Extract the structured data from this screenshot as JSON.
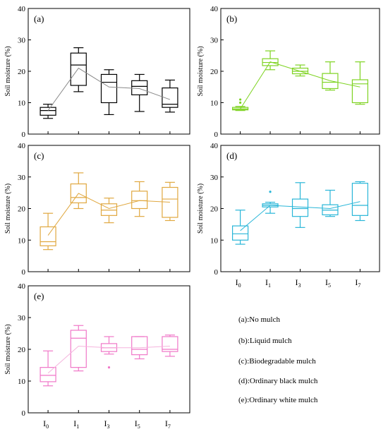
{
  "chart_data": [
    {
      "type": "box",
      "panel_label": "(a)",
      "ylabel": "Soil moisture (%)",
      "ylim": [
        0,
        40
      ],
      "yticks": [
        0,
        10,
        20,
        30,
        40
      ],
      "categories": [
        "I0",
        "I1",
        "I3",
        "I5",
        "I7"
      ],
      "color": "#000000",
      "mean_line_color": "#8a8a8a",
      "boxes": [
        {
          "min": 5.0,
          "q1": 6.0,
          "median": 7.5,
          "q3": 8.5,
          "max": 9.5,
          "mean": 7.5,
          "outliers": []
        },
        {
          "min": 13.5,
          "q1": 15.5,
          "median": 22.0,
          "q3": 25.8,
          "max": 27.5,
          "mean": 21.0,
          "outliers": []
        },
        {
          "min": 6.2,
          "q1": 10.0,
          "median": 16.5,
          "q3": 19.0,
          "max": 20.5,
          "mean": 15.0,
          "outliers": []
        },
        {
          "min": 7.2,
          "q1": 12.5,
          "median": 15.2,
          "q3": 17.0,
          "max": 19.0,
          "mean": 14.5,
          "outliers": []
        },
        {
          "min": 7.0,
          "q1": 8.5,
          "median": 9.5,
          "q3": 14.7,
          "max": 17.2,
          "mean": 11.0,
          "outliers": []
        }
      ]
    },
    {
      "type": "box",
      "panel_label": "(b)",
      "ylabel": "Soil moisture (%)",
      "ylim": [
        0,
        40
      ],
      "yticks": [
        0,
        10,
        20,
        30,
        40
      ],
      "categories": [
        "I0",
        "I1",
        "I3",
        "I5",
        "I7"
      ],
      "color": "#7ed321",
      "mean_line_color": "#7ed321",
      "boxes": [
        {
          "min": 7.5,
          "q1": 7.7,
          "median": 8.0,
          "q3": 8.5,
          "max": 8.8,
          "mean": 8.0,
          "outliers": [
            10.0,
            11.0
          ]
        },
        {
          "min": 20.5,
          "q1": 21.8,
          "median": 22.8,
          "q3": 24.0,
          "max": 26.5,
          "mean": 23.0,
          "outliers": []
        },
        {
          "min": 18.5,
          "q1": 19.2,
          "median": 20.0,
          "q3": 21.0,
          "max": 22.0,
          "mean": 20.0,
          "outliers": []
        },
        {
          "min": 14.0,
          "q1": 14.5,
          "median": 16.5,
          "q3": 19.3,
          "max": 23.0,
          "mean": 17.0,
          "outliers": []
        },
        {
          "min": 9.5,
          "q1": 10.0,
          "median": 16.0,
          "q3": 17.3,
          "max": 23.0,
          "mean": 15.0,
          "outliers": []
        }
      ]
    },
    {
      "type": "box",
      "panel_label": "(c)",
      "ylabel": "Soil moisture (%)",
      "ylim": [
        0,
        40
      ],
      "yticks": [
        0,
        10,
        20,
        30,
        40
      ],
      "categories": [
        "I0",
        "I1",
        "I3",
        "I5",
        "I7"
      ],
      "color": "#e0a840",
      "mean_line_color": "#e0a840",
      "boxes": [
        {
          "min": 7.0,
          "q1": 8.2,
          "median": 9.5,
          "q3": 14.2,
          "max": 18.5,
          "mean": 11.5,
          "outliers": []
        },
        {
          "min": 20.0,
          "q1": 21.8,
          "median": 23.5,
          "q3": 27.8,
          "max": 31.3,
          "mean": 24.8,
          "outliers": []
        },
        {
          "min": 15.5,
          "q1": 17.8,
          "median": 19.5,
          "q3": 21.5,
          "max": 23.3,
          "mean": 20.0,
          "outliers": []
        },
        {
          "min": 17.5,
          "q1": 20.0,
          "median": 22.5,
          "q3": 25.5,
          "max": 28.5,
          "mean": 22.5,
          "outliers": []
        },
        {
          "min": 16.2,
          "q1": 17.2,
          "median": 23.0,
          "q3": 26.7,
          "max": 28.3,
          "mean": 22.0,
          "outliers": []
        }
      ]
    },
    {
      "type": "box",
      "panel_label": "(d)",
      "ylabel": "Soil moisture (%)",
      "ylim": [
        0,
        40
      ],
      "yticks": [
        0,
        10,
        20,
        30,
        40
      ],
      "categories": [
        "I0",
        "I1",
        "I3",
        "I5",
        "I7"
      ],
      "color": "#29b6d8",
      "mean_line_color": "#29b6d8",
      "boxes": [
        {
          "min": 8.7,
          "q1": 10.0,
          "median": 12.0,
          "q3": 14.5,
          "max": 19.5,
          "mean": 13.0,
          "outliers": []
        },
        {
          "min": 18.5,
          "q1": 20.5,
          "median": 21.0,
          "q3": 21.5,
          "max": 22.0,
          "mean": 21.0,
          "outliers": [
            25.3
          ]
        },
        {
          "min": 14.0,
          "q1": 17.5,
          "median": 20.0,
          "q3": 23.0,
          "max": 28.2,
          "mean": 20.5,
          "outliers": []
        },
        {
          "min": 17.5,
          "q1": 18.0,
          "median": 19.5,
          "q3": 21.2,
          "max": 25.8,
          "mean": 20.0,
          "outliers": []
        },
        {
          "min": 16.2,
          "q1": 17.8,
          "median": 21.0,
          "q3": 28.0,
          "max": 28.5,
          "mean": 22.2,
          "outliers": []
        }
      ]
    },
    {
      "type": "box",
      "panel_label": "(e)",
      "ylabel": "Soil moisture (%)",
      "ylim": [
        0,
        40
      ],
      "yticks": [
        0,
        10,
        20,
        30,
        40
      ],
      "categories": [
        "I0",
        "I1",
        "I3",
        "I5",
        "I7"
      ],
      "color": "#f077c8",
      "mean_line_color": "#f5b4dd",
      "boxes": [
        {
          "min": 8.5,
          "q1": 9.8,
          "median": 11.8,
          "q3": 14.3,
          "max": 19.5,
          "mean": 12.5,
          "outliers": []
        },
        {
          "min": 13.2,
          "q1": 14.3,
          "median": 23.5,
          "q3": 26.0,
          "max": 27.5,
          "mean": 21.0,
          "outliers": []
        },
        {
          "min": 18.5,
          "q1": 19.3,
          "median": 20.5,
          "q3": 21.8,
          "max": 24.0,
          "mean": 20.5,
          "outliers": [
            14.3
          ]
        },
        {
          "min": 17.0,
          "q1": 18.3,
          "median": 20.0,
          "q3": 24.0,
          "max": 24.0,
          "mean": 20.5,
          "outliers": []
        },
        {
          "min": 17.8,
          "q1": 19.3,
          "median": 20.0,
          "q3": 24.0,
          "max": 24.5,
          "mean": 21.0,
          "outliers": []
        }
      ]
    }
  ],
  "legend": [
    "(a):No mulch",
    "(b):Liquid mulch",
    "(c):Biodegradable mulch",
    "(d):Ordinary black mulch",
    "(e):Ordinary white mulch"
  ],
  "x_tick_labels": [
    {
      "base": "I",
      "sub": "0"
    },
    {
      "base": "I",
      "sub": "1"
    },
    {
      "base": "I",
      "sub": "3"
    },
    {
      "base": "I",
      "sub": "5"
    },
    {
      "base": "I",
      "sub": "7"
    }
  ]
}
